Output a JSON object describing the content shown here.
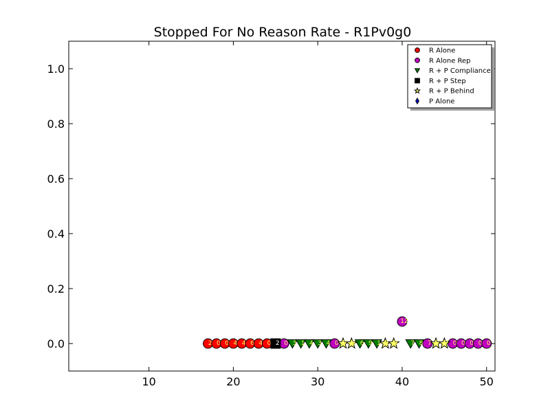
{
  "chart_data": {
    "type": "scatter",
    "title": "Stopped For No Reason Rate - R1Pv0g0",
    "xlabel": "",
    "ylabel": "",
    "xlim": [
      0.5,
      51
    ],
    "ylim": [
      -0.1,
      1.1
    ],
    "x_ticks": [
      10,
      20,
      30,
      40,
      50
    ],
    "y_ticks": [
      0.0,
      0.2,
      0.4,
      0.6,
      0.8,
      1.0
    ],
    "x_tick_labels": [
      "10",
      "20",
      "30",
      "40",
      "50"
    ],
    "y_tick_labels": [
      "0.0",
      "0.2",
      "0.4",
      "0.6",
      "0.8",
      "1.0"
    ],
    "grid": false,
    "legend_position": "top-right",
    "series": [
      {
        "name": "R Alone",
        "marker": "circle",
        "color": "#ff0000",
        "label_color": "#ffff66",
        "points": [
          {
            "x": 17,
            "y": 0.0,
            "label": "2"
          },
          {
            "x": 18,
            "y": 0.0,
            "label": "0"
          },
          {
            "x": 19,
            "y": 0.0,
            "label": "0"
          },
          {
            "x": 20,
            "y": 0.0,
            "label": "4"
          },
          {
            "x": 21,
            "y": 0.0,
            "label": "4"
          },
          {
            "x": 22,
            "y": 0.0,
            "label": "6"
          },
          {
            "x": 23,
            "y": 0.0,
            "label": "4"
          },
          {
            "x": 24,
            "y": 0.0,
            "label": "0"
          }
        ]
      },
      {
        "name": "R Alone Rep",
        "marker": "circle",
        "color": "#bf00bf",
        "label_color": "#ffff66",
        "points": [
          {
            "x": 26,
            "y": 0.0,
            "label": "0"
          },
          {
            "x": 32,
            "y": 0.0,
            "label": "0"
          },
          {
            "x": 40,
            "y": 0.08,
            "label": "12"
          },
          {
            "x": 43,
            "y": 0.0,
            "label": "7"
          },
          {
            "x": 46,
            "y": 0.0,
            "label": "0"
          },
          {
            "x": 47,
            "y": 0.0,
            "label": "0"
          },
          {
            "x": 48,
            "y": 0.0,
            "label": "0"
          },
          {
            "x": 49,
            "y": 0.0,
            "label": "0"
          },
          {
            "x": 50,
            "y": 0.0,
            "label": "0"
          }
        ]
      },
      {
        "name": "R + P Compliance",
        "marker": "triangle-down",
        "color": "#007f00",
        "label_color": "#ffff66",
        "points": [
          {
            "x": 27,
            "y": 0.0,
            "label": "3"
          },
          {
            "x": 28,
            "y": 0.0,
            "label": "1"
          },
          {
            "x": 29,
            "y": 0.0,
            "label": "4"
          },
          {
            "x": 30,
            "y": 0.0,
            "label": "3"
          },
          {
            "x": 31,
            "y": 0.0,
            "label": "4"
          },
          {
            "x": 35,
            "y": 0.0,
            "label": "6"
          },
          {
            "x": 36,
            "y": 0.0,
            "label": "9"
          },
          {
            "x": 37,
            "y": 0.0,
            "label": "1"
          },
          {
            "x": 41,
            "y": 0.0,
            "label": "7"
          },
          {
            "x": 42,
            "y": 0.0,
            "label": "8"
          }
        ]
      },
      {
        "name": "R + P Step",
        "marker": "square",
        "color": "#000000",
        "label_color": "#ffffff",
        "points": [
          {
            "x": 25,
            "y": 0.0,
            "label": "2"
          }
        ]
      },
      {
        "name": "R + P Behind",
        "marker": "star",
        "color": "#ffff66",
        "label_color": "#ffff66",
        "points": [
          {
            "x": 33,
            "y": 0.0,
            "label": "7"
          },
          {
            "x": 34,
            "y": 0.0,
            "label": "6"
          },
          {
            "x": 38,
            "y": 0.0,
            "label": "1"
          },
          {
            "x": 39,
            "y": 0.0,
            "label": "0"
          },
          {
            "x": 44,
            "y": 0.0,
            "label": "7"
          },
          {
            "x": 45,
            "y": 0.0,
            "label": "7"
          }
        ]
      },
      {
        "name": "P Alone",
        "marker": "diamond",
        "color": "#0000cc",
        "label_color": "#ffff66",
        "points": []
      }
    ]
  }
}
